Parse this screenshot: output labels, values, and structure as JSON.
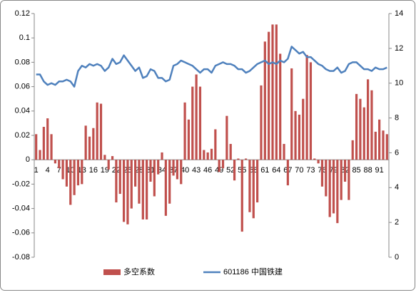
{
  "chart_data": {
    "type": "bar_line",
    "categories": [
      1,
      null,
      null,
      4,
      null,
      null,
      7,
      null,
      null,
      10,
      null,
      null,
      13,
      null,
      null,
      16,
      null,
      null,
      19,
      null,
      null,
      22,
      null,
      null,
      25,
      null,
      null,
      28,
      null,
      null,
      31,
      null,
      null,
      34,
      null,
      null,
      37,
      null,
      null,
      40,
      null,
      null,
      43,
      null,
      null,
      46,
      null,
      null,
      49,
      null,
      null,
      52,
      null,
      null,
      55,
      null,
      null,
      58,
      null,
      null,
      61,
      null,
      null,
      64,
      null,
      null,
      67,
      null,
      null,
      70,
      null,
      null,
      73,
      null,
      null,
      76,
      null,
      null,
      79,
      null,
      null,
      82,
      null,
      null,
      85,
      null,
      null,
      88,
      null,
      null,
      91,
      null,
      null
    ],
    "series": [
      {
        "name": "多空系数",
        "type": "bar",
        "color": "#c0504d",
        "values": [
          0.021,
          0.008,
          0.027,
          0.034,
          0.021,
          -0.003,
          -0.007,
          -0.016,
          -0.022,
          -0.037,
          -0.029,
          -0.021,
          -0.02,
          0.028,
          0.019,
          0.026,
          0.047,
          0.046,
          0.004,
          -0.008,
          0.003,
          -0.035,
          -0.028,
          -0.051,
          -0.053,
          -0.04,
          -0.022,
          -0.036,
          -0.049,
          -0.049,
          -0.018,
          -0.03,
          -0.012,
          0.006,
          -0.046,
          -0.036,
          -0.013,
          -0.016,
          -0.02,
          0.047,
          0.033,
          0.06,
          0.07,
          0.06,
          0.008,
          0.006,
          0.009,
          0.025,
          -0.01,
          -0.007,
          0.036,
          0.013,
          -0.017,
          0.001,
          -0.059,
          0.001,
          -0.043,
          -0.048,
          -0.035,
          0.061,
          0.097,
          0.105,
          0.111,
          0.111,
          0.087,
          0.013,
          -0.021,
          0.075,
          0.04,
          0.037,
          0.05,
          0.086,
          0.08,
          0.001,
          -0.003,
          -0.022,
          -0.03,
          -0.047,
          -0.044,
          -0.052,
          -0.033,
          -0.018,
          -0.033,
          0.016,
          0.054,
          0.05,
          0.043,
          0.066,
          0.057,
          0.023,
          0.033,
          0.024,
          0.021
        ]
      },
      {
        "name": "601186 中国铁建",
        "type": "line",
        "axis": "y2",
        "color": "#4f81bd",
        "values": [
          10.5,
          10.5,
          10.1,
          9.9,
          10.0,
          9.9,
          10.1,
          10.1,
          10.2,
          10.1,
          9.8,
          10.7,
          11.0,
          10.9,
          11.1,
          11.0,
          11.1,
          11.0,
          10.7,
          10.9,
          11.4,
          11.1,
          11.2,
          11.6,
          11.3,
          11.0,
          10.7,
          10.9,
          10.3,
          10.4,
          10.8,
          10.7,
          10.3,
          10.3,
          10.1,
          10.2,
          11.0,
          11.1,
          11.3,
          11.2,
          11.1,
          11.0,
          10.8,
          10.6,
          10.8,
          10.8,
          10.6,
          11.0,
          11.1,
          11.2,
          11.1,
          11.1,
          11.0,
          10.8,
          10.8,
          10.6,
          10.7,
          10.9,
          11.1,
          11.2,
          11.3,
          11.1,
          11.2,
          11.1,
          11.3,
          11.2,
          11.4,
          12.1,
          11.9,
          11.7,
          11.8,
          11.5,
          11.5,
          11.3,
          11.1,
          11.0,
          10.8,
          10.7,
          10.7,
          10.9,
          10.6,
          10.7,
          11.1,
          11.2,
          11.2,
          11.0,
          10.8,
          10.8,
          10.7,
          10.9,
          10.8,
          10.8,
          10.9
        ]
      }
    ],
    "ylim": [
      -0.08,
      0.12
    ],
    "yticks": [
      -0.08,
      -0.06,
      -0.04,
      -0.02,
      0,
      0.02,
      0.04,
      0.06,
      0.08,
      0.1,
      0.12
    ],
    "y2lim": [
      0,
      14
    ],
    "y2ticks": [
      0,
      2,
      4,
      6,
      8,
      10,
      12,
      14
    ],
    "grid": false,
    "legend": "bottom"
  }
}
